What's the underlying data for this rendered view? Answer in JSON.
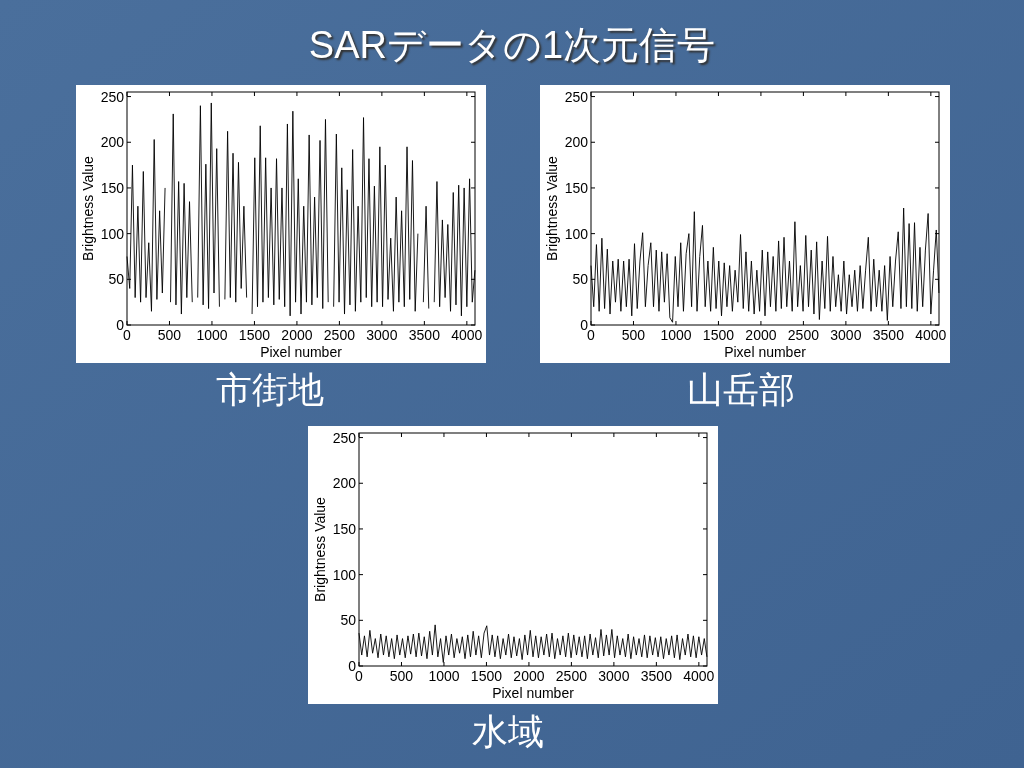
{
  "chart_data": [
    {
      "type": "line",
      "title": "市街地",
      "annotations": [
        "SARデータの1次元信号"
      ],
      "xlabel": "Pixel number",
      "ylabel": "Brightness Value",
      "color": "#000000",
      "xlim": [
        0,
        4096
      ],
      "ylim": [
        0,
        255
      ],
      "xticks": [
        0,
        500,
        1000,
        1500,
        2000,
        2500,
        3000,
        3500,
        4000
      ],
      "yticks": [
        0,
        50,
        100,
        150,
        200,
        250
      ],
      "x": [
        0,
        32,
        64,
        96,
        128,
        160,
        192,
        224,
        256,
        288,
        320,
        352,
        384,
        416,
        448,
        480,
        512,
        544,
        576,
        608,
        640,
        672,
        704,
        736,
        768,
        800,
        832,
        864,
        896,
        928,
        960,
        992,
        1024,
        1056,
        1088,
        1120,
        1152,
        1184,
        1216,
        1248,
        1280,
        1312,
        1344,
        1376,
        1408,
        1440,
        1472,
        1504,
        1536,
        1568,
        1600,
        1632,
        1664,
        1696,
        1728,
        1760,
        1792,
        1824,
        1856,
        1888,
        1920,
        1952,
        1984,
        2016,
        2048,
        2080,
        2112,
        2144,
        2176,
        2208,
        2240,
        2272,
        2304,
        2336,
        2368,
        2400,
        2432,
        2464,
        2496,
        2528,
        2560,
        2592,
        2624,
        2656,
        2688,
        2720,
        2752,
        2784,
        2816,
        2848,
        2880,
        2912,
        2944,
        2976,
        3008,
        3040,
        3072,
        3104,
        3136,
        3168,
        3200,
        3232,
        3264,
        3296,
        3328,
        3360,
        3392,
        3424,
        3456,
        3488,
        3520,
        3552,
        3584,
        3616,
        3648,
        3680,
        3712,
        3744,
        3776,
        3808,
        3840,
        3872,
        3904,
        3936,
        3968,
        4000,
        4032,
        4064,
        4095
      ],
      "values": [
        75,
        40,
        175,
        30,
        130,
        25,
        168,
        30,
        90,
        15,
        203,
        28,
        125,
        35,
        150,
        null,
        25,
        231,
        22,
        157,
        12,
        155,
        30,
        135,
        25,
        null,
        30,
        240,
        22,
        176,
        18,
        243,
        35,
        193,
        20,
        null,
        28,
        212,
        30,
        188,
        25,
        178,
        40,
        130,
        30,
        null,
        12,
        183,
        20,
        218,
        25,
        183,
        30,
        150,
        22,
        182,
        28,
        150,
        20,
        220,
        10,
        234,
        25,
        160,
        12,
        130,
        25,
        208,
        22,
        140,
        30,
        202,
        18,
        225,
        25,
        null,
        20,
        209,
        25,
        172,
        12,
        148,
        22,
        192,
        15,
        130,
        25,
        227,
        30,
        182,
        20,
        152,
        25,
        195,
        20,
        175,
        28,
        95,
        15,
        140,
        25,
        125,
        20,
        195,
        28,
        180,
        15,
        100,
        null,
        25,
        130,
        18,
        null,
        25,
        157,
        20,
        115,
        30,
        110,
        15,
        145,
        22,
        153,
        10,
        150,
        20,
        160,
        25,
        60
      ]
    },
    {
      "type": "line",
      "title": "山岳部",
      "xlabel": "Pixel number",
      "ylabel": "Brightness Value",
      "color": "#000000",
      "xlim": [
        0,
        4096
      ],
      "ylim": [
        0,
        255
      ],
      "xticks": [
        0,
        500,
        1000,
        1500,
        2000,
        2500,
        3000,
        3500,
        4000
      ],
      "yticks": [
        0,
        50,
        100,
        150,
        200,
        250
      ],
      "x": [
        0,
        32,
        64,
        96,
        128,
        160,
        192,
        224,
        256,
        288,
        320,
        352,
        384,
        416,
        448,
        480,
        512,
        544,
        576,
        608,
        640,
        672,
        704,
        736,
        768,
        800,
        832,
        864,
        896,
        928,
        960,
        992,
        1024,
        1056,
        1088,
        1120,
        1152,
        1184,
        1216,
        1248,
        1280,
        1312,
        1344,
        1376,
        1408,
        1440,
        1472,
        1504,
        1536,
        1568,
        1600,
        1632,
        1664,
        1696,
        1728,
        1760,
        1792,
        1824,
        1856,
        1888,
        1920,
        1952,
        1984,
        2016,
        2048,
        2080,
        2112,
        2144,
        2176,
        2208,
        2240,
        2272,
        2304,
        2336,
        2368,
        2400,
        2432,
        2464,
        2496,
        2528,
        2560,
        2592,
        2624,
        2656,
        2688,
        2720,
        2752,
        2784,
        2816,
        2848,
        2880,
        2912,
        2944,
        2976,
        3008,
        3040,
        3072,
        3104,
        3136,
        3168,
        3200,
        3232,
        3264,
        3296,
        3328,
        3360,
        3392,
        3424,
        3456,
        3488,
        3520,
        3552,
        3584,
        3616,
        3648,
        3680,
        3712,
        3744,
        3776,
        3808,
        3840,
        3872,
        3904,
        3936,
        3968,
        4000,
        4032,
        4064,
        4095
      ],
      "values": [
        65,
        20,
        88,
        15,
        95,
        18,
        83,
        12,
        70,
        25,
        72,
        15,
        70,
        20,
        72,
        10,
        89,
        18,
        70,
        101,
        20,
        65,
        90,
        20,
        82,
        15,
        80,
        25,
        78,
        8,
        3,
        75,
        20,
        90,
        15,
        78,
        100,
        20,
        124,
        15,
        75,
        109,
        20,
        70,
        15,
        85,
        18,
        70,
        10,
        68,
        20,
        65,
        15,
        60,
        25,
        99,
        18,
        80,
        15,
        70,
        12,
        60,
        15,
        82,
        10,
        80,
        20,
        75,
        15,
        92,
        18,
        96,
        20,
        70,
        15,
        113,
        20,
        65,
        15,
        98,
        20,
        82,
        12,
        91,
        6,
        70,
        18,
        97,
        15,
        75,
        20,
        55,
        15,
        70,
        12,
        55,
        20,
        60,
        15,
        65,
        18,
        60,
        96,
        15,
        72,
        20,
        60,
        15,
        65,
        5,
        75,
        20,
        70,
        102,
        18,
        128,
        20,
        111,
        18,
        112,
        15,
        85,
        20,
        82,
        122,
        12,
        60,
        104,
        35
      ]
    },
    {
      "type": "line",
      "title": "水域",
      "xlabel": "Pixel number",
      "ylabel": "Brightness Value",
      "color": "#000000",
      "xlim": [
        0,
        4096
      ],
      "ylim": [
        0,
        255
      ],
      "xticks": [
        0,
        500,
        1000,
        1500,
        2000,
        2500,
        3000,
        3500,
        4000
      ],
      "yticks": [
        0,
        50,
        100,
        150,
        200,
        250
      ],
      "x": [
        0,
        32,
        64,
        96,
        128,
        160,
        192,
        224,
        256,
        288,
        320,
        352,
        384,
        416,
        448,
        480,
        512,
        544,
        576,
        608,
        640,
        672,
        704,
        736,
        768,
        800,
        832,
        864,
        896,
        928,
        960,
        992,
        1024,
        1056,
        1088,
        1120,
        1152,
        1184,
        1216,
        1248,
        1280,
        1312,
        1344,
        1376,
        1408,
        1440,
        1472,
        1504,
        1536,
        1568,
        1600,
        1632,
        1664,
        1696,
        1728,
        1760,
        1792,
        1824,
        1856,
        1888,
        1920,
        1952,
        1984,
        2016,
        2048,
        2080,
        2112,
        2144,
        2176,
        2208,
        2240,
        2272,
        2304,
        2336,
        2368,
        2400,
        2432,
        2464,
        2496,
        2528,
        2560,
        2592,
        2624,
        2656,
        2688,
        2720,
        2752,
        2784,
        2816,
        2848,
        2880,
        2912,
        2944,
        2976,
        3008,
        3040,
        3072,
        3104,
        3136,
        3168,
        3200,
        3232,
        3264,
        3296,
        3328,
        3360,
        3392,
        3424,
        3456,
        3488,
        3520,
        3552,
        3584,
        3616,
        3648,
        3680,
        3712,
        3744,
        3776,
        3808,
        3840,
        3872,
        3904,
        3936,
        3968,
        4000,
        4032,
        4064,
        4095
      ],
      "values": [
        36,
        12,
        33,
        10,
        39,
        14,
        30,
        9,
        35,
        12,
        33,
        10,
        30,
        8,
        34,
        12,
        30,
        9,
        33,
        13,
        35,
        10,
        36,
        11,
        32,
        8,
        38,
        12,
        45,
        10,
        30,
        4,
        33,
        12,
        35,
        9,
        30,
        14,
        32,
        8,
        34,
        10,
        38,
        12,
        33,
        9,
        36,
        44,
        12,
        34,
        10,
        33,
        8,
        30,
        12,
        35,
        9,
        32,
        11,
        30,
        7,
        34,
        12,
        39,
        10,
        33,
        9,
        32,
        12,
        35,
        10,
        36,
        8,
        30,
        12,
        33,
        10,
        36,
        9,
        34,
        12,
        32,
        10,
        33,
        8,
        35,
        12,
        31,
        9,
        40,
        11,
        34,
        12,
        40,
        9,
        33,
        12,
        30,
        10,
        35,
        8,
        32,
        12,
        30,
        10,
        34,
        9,
        33,
        12,
        31,
        10,
        32,
        8,
        30,
        12,
        33,
        9,
        34,
        7,
        30,
        12,
        35,
        10,
        33,
        9,
        32,
        12,
        30,
        10
      ]
    }
  ]
}
